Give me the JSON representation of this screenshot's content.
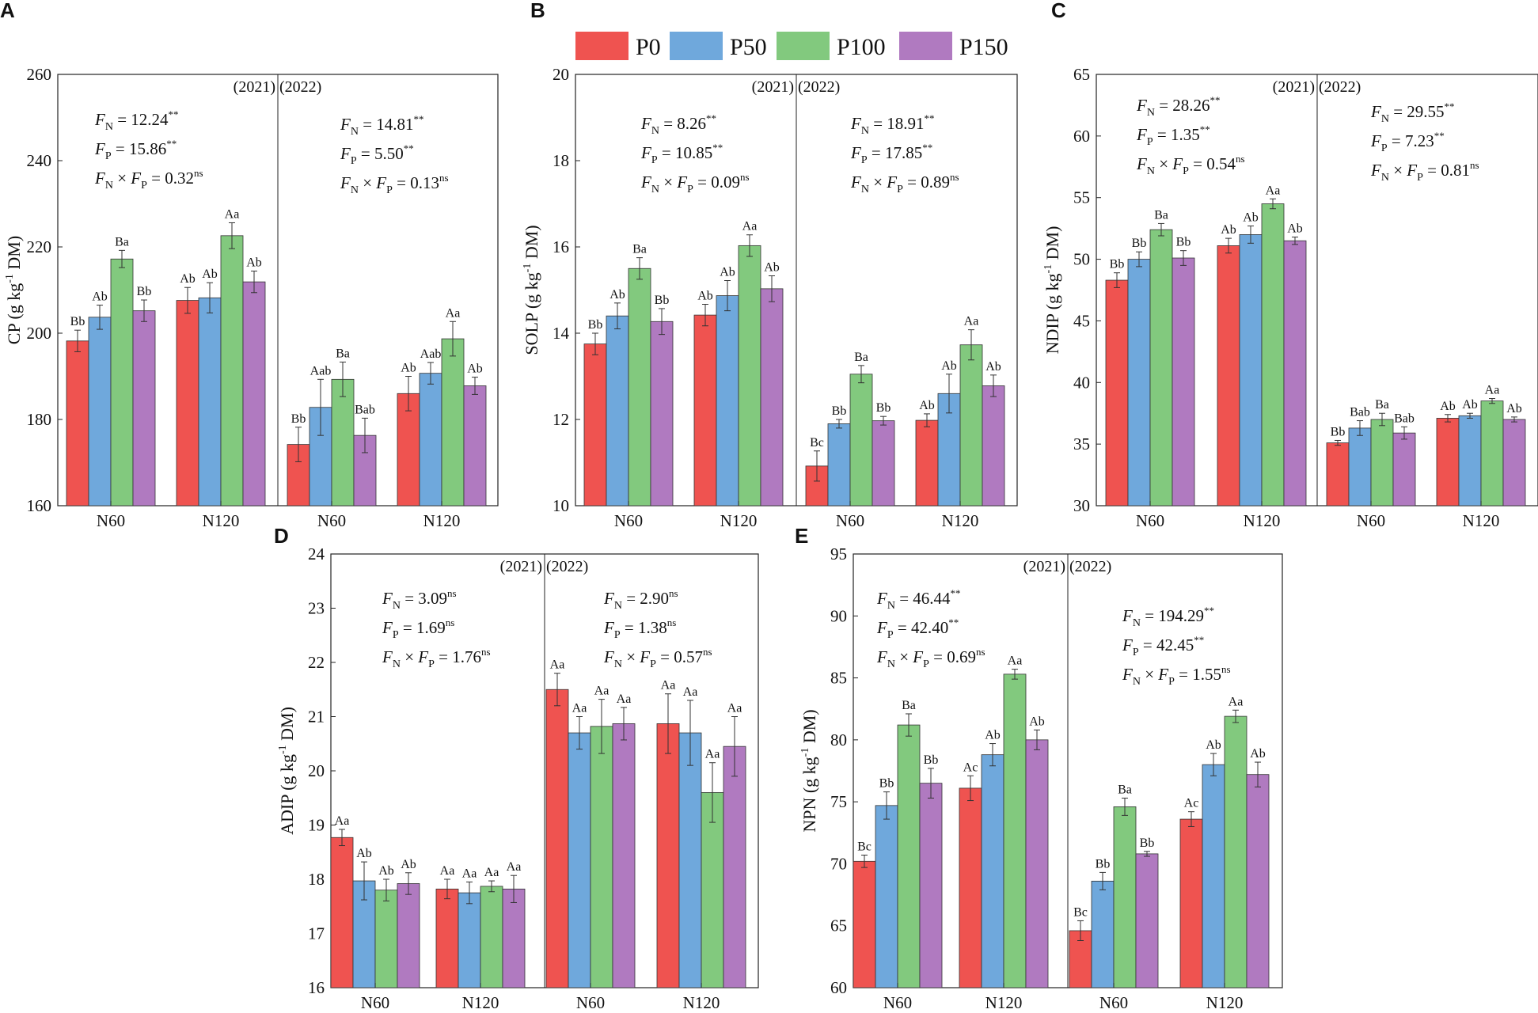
{
  "legend": [
    {
      "label": "P0",
      "color": "#EF5350"
    },
    {
      "label": "P50",
      "color": "#6FA8DC"
    },
    {
      "label": "P100",
      "color": "#82C97E"
    },
    {
      "label": "P150",
      "color": "#B07AC0"
    }
  ],
  "chart_data": [
    {
      "panel": "A",
      "type": "bar",
      "ylabel_main": "CP (g kg",
      "ylabel_sup": "-1",
      "ylabel_end": " DM)",
      "ylim": [
        160,
        260
      ],
      "yticks": [
        "160",
        "180",
        "200",
        "220",
        "240",
        "260"
      ],
      "years": [
        "(2021)",
        "(2022)"
      ],
      "groups": [
        "N60",
        "N120",
        "N60",
        "N120"
      ],
      "values": [
        [
          198.2,
          203.7,
          217.2,
          205.2
        ],
        [
          207.6,
          208.2,
          222.6,
          211.9
        ],
        [
          174.2,
          182.8,
          189.3,
          176.3
        ],
        [
          186.0,
          190.7,
          198.7,
          187.8
        ]
      ],
      "errors": [
        [
          2.5,
          2.8,
          2.0,
          2.5
        ],
        [
          3.0,
          3.5,
          3.0,
          2.5
        ],
        [
          4.0,
          6.5,
          4.0,
          4.0
        ],
        [
          4.0,
          2.5,
          4.0,
          2.0
        ]
      ],
      "letters": [
        [
          "Bb",
          "Ab",
          "Ba",
          "Bb"
        ],
        [
          "Ab",
          "Ab",
          "Aa",
          "Ab"
        ],
        [
          "Bb",
          "Aab",
          "Ba",
          "Bab"
        ],
        [
          "Ab",
          "Aab",
          "Aa",
          "Ab"
        ]
      ],
      "stats": [
        [
          {
            "sub": "N",
            "val": "12.24",
            "sig": "**"
          },
          {
            "sub": "P",
            "val": "15.86",
            "sig": "**"
          },
          {
            "inter": true,
            "val": "0.32",
            "sig": "ns"
          }
        ],
        [
          {
            "sub": "N",
            "val": "14.81",
            "sig": "**"
          },
          {
            "sub": "P",
            "val": "5.50",
            "sig": "**"
          },
          {
            "inter": true,
            "val": "0.13",
            "sig": "ns"
          }
        ]
      ]
    },
    {
      "panel": "B",
      "type": "bar",
      "ylabel_main": "SOLP (g kg",
      "ylabel_sup": "-1",
      "ylabel_end": " DM)",
      "ylim": [
        10,
        20
      ],
      "yticks": [
        "10",
        "12",
        "14",
        "16",
        "18",
        "20"
      ],
      "years": [
        "(2021)",
        "(2022)"
      ],
      "groups": [
        "N60",
        "N120",
        "N60",
        "N120"
      ],
      "values": [
        [
          13.75,
          14.4,
          15.5,
          14.27
        ],
        [
          14.42,
          14.87,
          16.03,
          15.03
        ],
        [
          10.92,
          11.9,
          13.05,
          11.97
        ],
        [
          11.98,
          12.6,
          13.73,
          12.78
        ]
      ],
      "errors": [
        [
          0.25,
          0.3,
          0.25,
          0.3
        ],
        [
          0.25,
          0.35,
          0.25,
          0.3
        ],
        [
          0.35,
          0.1,
          0.2,
          0.1
        ],
        [
          0.15,
          0.45,
          0.35,
          0.25
        ]
      ],
      "letters": [
        [
          "Bb",
          "Ab",
          "Ba",
          "Bb"
        ],
        [
          "Ab",
          "Ab",
          "Aa",
          "Ab"
        ],
        [
          "Bc",
          "Bb",
          "Ba",
          "Bb"
        ],
        [
          "Ab",
          "Ab",
          "Aa",
          "Ab"
        ]
      ],
      "stats": [
        [
          {
            "sub": "N",
            "val": "8.26",
            "sig": "**"
          },
          {
            "sub": "P",
            "val": "10.85",
            "sig": "**"
          },
          {
            "inter": true,
            "val": "0.09",
            "sig": "ns"
          }
        ],
        [
          {
            "sub": "N",
            "val": "18.91",
            "sig": "**"
          },
          {
            "sub": "P",
            "val": "17.85",
            "sig": "**"
          },
          {
            "inter": true,
            "val": "0.89",
            "sig": "ns"
          }
        ]
      ]
    },
    {
      "panel": "C",
      "type": "bar",
      "ylabel_main": "NDIP (g kg",
      "ylabel_sup": "-1",
      "ylabel_end": " DM)",
      "ylim": [
        30,
        65
      ],
      "yticks": [
        "30",
        "35",
        "40",
        "45",
        "50",
        "55",
        "60",
        "65"
      ],
      "years": [
        "(2021)",
        "(2022)"
      ],
      "groups": [
        "N60",
        "N120",
        "N60",
        "N120"
      ],
      "values": [
        [
          48.3,
          50.0,
          52.4,
          50.1
        ],
        [
          51.1,
          52.0,
          54.5,
          51.5
        ],
        [
          35.1,
          36.3,
          37.0,
          35.9
        ],
        [
          37.1,
          37.3,
          38.5,
          37.0
        ]
      ],
      "errors": [
        [
          0.6,
          0.6,
          0.5,
          0.6
        ],
        [
          0.6,
          0.7,
          0.4,
          0.3
        ],
        [
          0.2,
          0.6,
          0.5,
          0.5
        ],
        [
          0.3,
          0.2,
          0.2,
          0.2
        ]
      ],
      "letters": [
        [
          "Bb",
          "Bb",
          "Ba",
          "Bb"
        ],
        [
          "Ab",
          "Ab",
          "Aa",
          "Ab"
        ],
        [
          "Bb",
          "Bab",
          "Ba",
          "Bab"
        ],
        [
          "Ab",
          "Ab",
          "Aa",
          "Ab"
        ]
      ],
      "stats": [
        [
          {
            "sub": "N",
            "val": "28.26",
            "sig": "**"
          },
          {
            "sub": "P",
            "val": "1.35",
            "sig": "**"
          },
          {
            "inter": true,
            "val": "0.54",
            "sig": "ns"
          }
        ],
        [
          {
            "sub": "N",
            "val": "29.55",
            "sig": "**"
          },
          {
            "sub": "P",
            "val": "7.23",
            "sig": "**"
          },
          {
            "inter": true,
            "val": "0.81",
            "sig": "ns"
          }
        ]
      ]
    },
    {
      "panel": "D",
      "type": "bar",
      "ylabel_main": "ADIP (g kg",
      "ylabel_sup": "-1",
      "ylabel_end": " DM)",
      "ylim": [
        16,
        24
      ],
      "yticks": [
        "16",
        "17",
        "18",
        "19",
        "20",
        "21",
        "22",
        "23",
        "24"
      ],
      "years": [
        "(2021)",
        "(2022)"
      ],
      "groups": [
        "N60",
        "N120",
        "N60",
        "N120"
      ],
      "values": [
        [
          18.77,
          17.97,
          17.8,
          17.92
        ],
        [
          17.82,
          17.75,
          17.87,
          17.82
        ],
        [
          21.5,
          20.7,
          20.82,
          20.87
        ],
        [
          20.87,
          20.7,
          19.6,
          20.45
        ]
      ],
      "errors": [
        [
          0.15,
          0.35,
          0.2,
          0.2
        ],
        [
          0.18,
          0.2,
          0.1,
          0.25
        ],
        [
          0.3,
          0.3,
          0.5,
          0.3
        ],
        [
          0.55,
          0.6,
          0.55,
          0.55
        ]
      ],
      "letters": [
        [
          "Aa",
          "Ab",
          "Ab",
          "Ab"
        ],
        [
          "Aa",
          "Aa",
          "Aa",
          "Aa"
        ],
        [
          "Aa",
          "Aa",
          "Aa",
          "Aa"
        ],
        [
          "Aa",
          "Aa",
          "Aa",
          "Aa"
        ]
      ],
      "stats": [
        [
          {
            "sub": "N",
            "val": "3.09",
            "sig": "ns"
          },
          {
            "sub": "P",
            "val": "1.69",
            "sig": "ns"
          },
          {
            "inter": true,
            "val": "1.76",
            "sig": "ns"
          }
        ],
        [
          {
            "sub": "N",
            "val": "2.90",
            "sig": "ns"
          },
          {
            "sub": "P",
            "val": "1.38",
            "sig": "ns"
          },
          {
            "inter": true,
            "val": "0.57",
            "sig": "ns"
          }
        ]
      ]
    },
    {
      "panel": "E",
      "type": "bar",
      "ylabel_main": "NPN (g kg",
      "ylabel_sup": "-1",
      "ylabel_end": " DM)",
      "ylim": [
        60,
        95
      ],
      "yticks": [
        "60",
        "65",
        "70",
        "75",
        "80",
        "85",
        "90",
        "95"
      ],
      "years": [
        "(2021)",
        "(2022)"
      ],
      "groups": [
        "N60",
        "N120",
        "N60",
        "N120"
      ],
      "values": [
        [
          70.2,
          74.7,
          81.2,
          76.5
        ],
        [
          76.1,
          78.8,
          85.3,
          80.0
        ],
        [
          64.6,
          68.6,
          74.6,
          70.8
        ],
        [
          73.6,
          78.0,
          81.9,
          77.2
        ]
      ],
      "errors": [
        [
          0.5,
          1.1,
          0.9,
          1.2
        ],
        [
          1.0,
          0.9,
          0.4,
          0.8
        ],
        [
          0.8,
          0.7,
          0.7,
          0.2
        ],
        [
          0.6,
          0.9,
          0.5,
          1.0
        ]
      ],
      "letters": [
        [
          "Bc",
          "Bb",
          "Ba",
          "Bb"
        ],
        [
          "Ac",
          "Ab",
          "Aa",
          "Ab"
        ],
        [
          "Bc",
          "Bb",
          "Ba",
          "Bb"
        ],
        [
          "Ac",
          "Ab",
          "Aa",
          "Ab"
        ]
      ],
      "stats": [
        [
          {
            "sub": "N",
            "val": "46.44",
            "sig": "**"
          },
          {
            "sub": "P",
            "val": "42.40",
            "sig": "**"
          },
          {
            "inter": true,
            "val": "0.69",
            "sig": "ns"
          }
        ],
        [
          {
            "sub": "N",
            "val": "194.29",
            "sig": "**"
          },
          {
            "sub": "P",
            "val": "42.45",
            "sig": "**"
          },
          {
            "inter": true,
            "val": "1.55",
            "sig": "ns"
          }
        ]
      ]
    }
  ]
}
